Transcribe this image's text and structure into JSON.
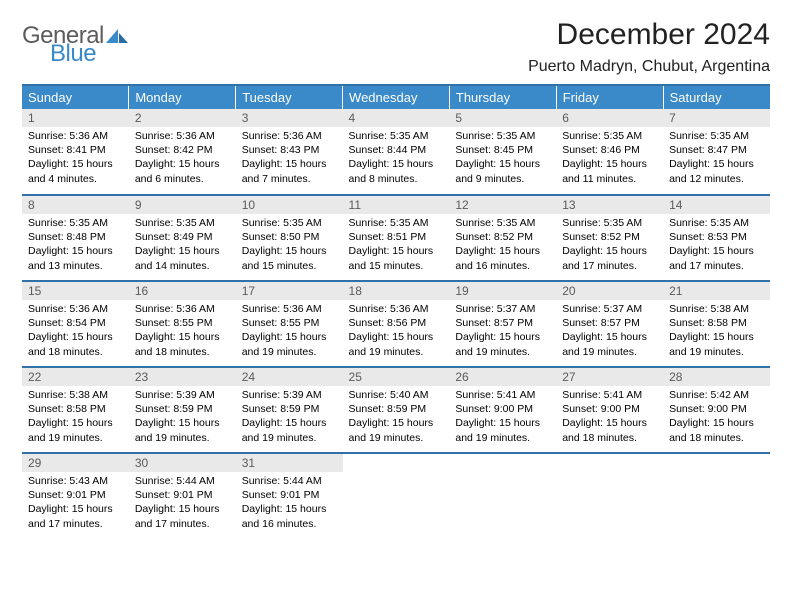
{
  "brand": {
    "line1": "General",
    "line2": "Blue",
    "accent": "#3a89c9",
    "gray": "#5c5c5c"
  },
  "title": "December 2024",
  "location": "Puerto Madryn, Chubut, Argentina",
  "colors": {
    "header_bg": "#3a89c9",
    "row_divider": "#3072a8",
    "daynum_bg": "#e9e9e9",
    "daynum_text": "#5b5b5b"
  },
  "weekdays": [
    "Sunday",
    "Monday",
    "Tuesday",
    "Wednesday",
    "Thursday",
    "Friday",
    "Saturday"
  ],
  "weeks": [
    [
      {
        "n": "1",
        "sr": "5:36 AM",
        "ss": "8:41 PM",
        "dl": "15 hours and 4 minutes."
      },
      {
        "n": "2",
        "sr": "5:36 AM",
        "ss": "8:42 PM",
        "dl": "15 hours and 6 minutes."
      },
      {
        "n": "3",
        "sr": "5:36 AM",
        "ss": "8:43 PM",
        "dl": "15 hours and 7 minutes."
      },
      {
        "n": "4",
        "sr": "5:35 AM",
        "ss": "8:44 PM",
        "dl": "15 hours and 8 minutes."
      },
      {
        "n": "5",
        "sr": "5:35 AM",
        "ss": "8:45 PM",
        "dl": "15 hours and 9 minutes."
      },
      {
        "n": "6",
        "sr": "5:35 AM",
        "ss": "8:46 PM",
        "dl": "15 hours and 11 minutes."
      },
      {
        "n": "7",
        "sr": "5:35 AM",
        "ss": "8:47 PM",
        "dl": "15 hours and 12 minutes."
      }
    ],
    [
      {
        "n": "8",
        "sr": "5:35 AM",
        "ss": "8:48 PM",
        "dl": "15 hours and 13 minutes."
      },
      {
        "n": "9",
        "sr": "5:35 AM",
        "ss": "8:49 PM",
        "dl": "15 hours and 14 minutes."
      },
      {
        "n": "10",
        "sr": "5:35 AM",
        "ss": "8:50 PM",
        "dl": "15 hours and 15 minutes."
      },
      {
        "n": "11",
        "sr": "5:35 AM",
        "ss": "8:51 PM",
        "dl": "15 hours and 15 minutes."
      },
      {
        "n": "12",
        "sr": "5:35 AM",
        "ss": "8:52 PM",
        "dl": "15 hours and 16 minutes."
      },
      {
        "n": "13",
        "sr": "5:35 AM",
        "ss": "8:52 PM",
        "dl": "15 hours and 17 minutes."
      },
      {
        "n": "14",
        "sr": "5:35 AM",
        "ss": "8:53 PM",
        "dl": "15 hours and 17 minutes."
      }
    ],
    [
      {
        "n": "15",
        "sr": "5:36 AM",
        "ss": "8:54 PM",
        "dl": "15 hours and 18 minutes."
      },
      {
        "n": "16",
        "sr": "5:36 AM",
        "ss": "8:55 PM",
        "dl": "15 hours and 18 minutes."
      },
      {
        "n": "17",
        "sr": "5:36 AM",
        "ss": "8:55 PM",
        "dl": "15 hours and 19 minutes."
      },
      {
        "n": "18",
        "sr": "5:36 AM",
        "ss": "8:56 PM",
        "dl": "15 hours and 19 minutes."
      },
      {
        "n": "19",
        "sr": "5:37 AM",
        "ss": "8:57 PM",
        "dl": "15 hours and 19 minutes."
      },
      {
        "n": "20",
        "sr": "5:37 AM",
        "ss": "8:57 PM",
        "dl": "15 hours and 19 minutes."
      },
      {
        "n": "21",
        "sr": "5:38 AM",
        "ss": "8:58 PM",
        "dl": "15 hours and 19 minutes."
      }
    ],
    [
      {
        "n": "22",
        "sr": "5:38 AM",
        "ss": "8:58 PM",
        "dl": "15 hours and 19 minutes."
      },
      {
        "n": "23",
        "sr": "5:39 AM",
        "ss": "8:59 PM",
        "dl": "15 hours and 19 minutes."
      },
      {
        "n": "24",
        "sr": "5:39 AM",
        "ss": "8:59 PM",
        "dl": "15 hours and 19 minutes."
      },
      {
        "n": "25",
        "sr": "5:40 AM",
        "ss": "8:59 PM",
        "dl": "15 hours and 19 minutes."
      },
      {
        "n": "26",
        "sr": "5:41 AM",
        "ss": "9:00 PM",
        "dl": "15 hours and 19 minutes."
      },
      {
        "n": "27",
        "sr": "5:41 AM",
        "ss": "9:00 PM",
        "dl": "15 hours and 18 minutes."
      },
      {
        "n": "28",
        "sr": "5:42 AM",
        "ss": "9:00 PM",
        "dl": "15 hours and 18 minutes."
      }
    ],
    [
      {
        "n": "29",
        "sr": "5:43 AM",
        "ss": "9:01 PM",
        "dl": "15 hours and 17 minutes."
      },
      {
        "n": "30",
        "sr": "5:44 AM",
        "ss": "9:01 PM",
        "dl": "15 hours and 17 minutes."
      },
      {
        "n": "31",
        "sr": "5:44 AM",
        "ss": "9:01 PM",
        "dl": "15 hours and 16 minutes."
      },
      null,
      null,
      null,
      null
    ]
  ],
  "labels": {
    "sunrise": "Sunrise:",
    "sunset": "Sunset:",
    "daylight": "Daylight:"
  }
}
